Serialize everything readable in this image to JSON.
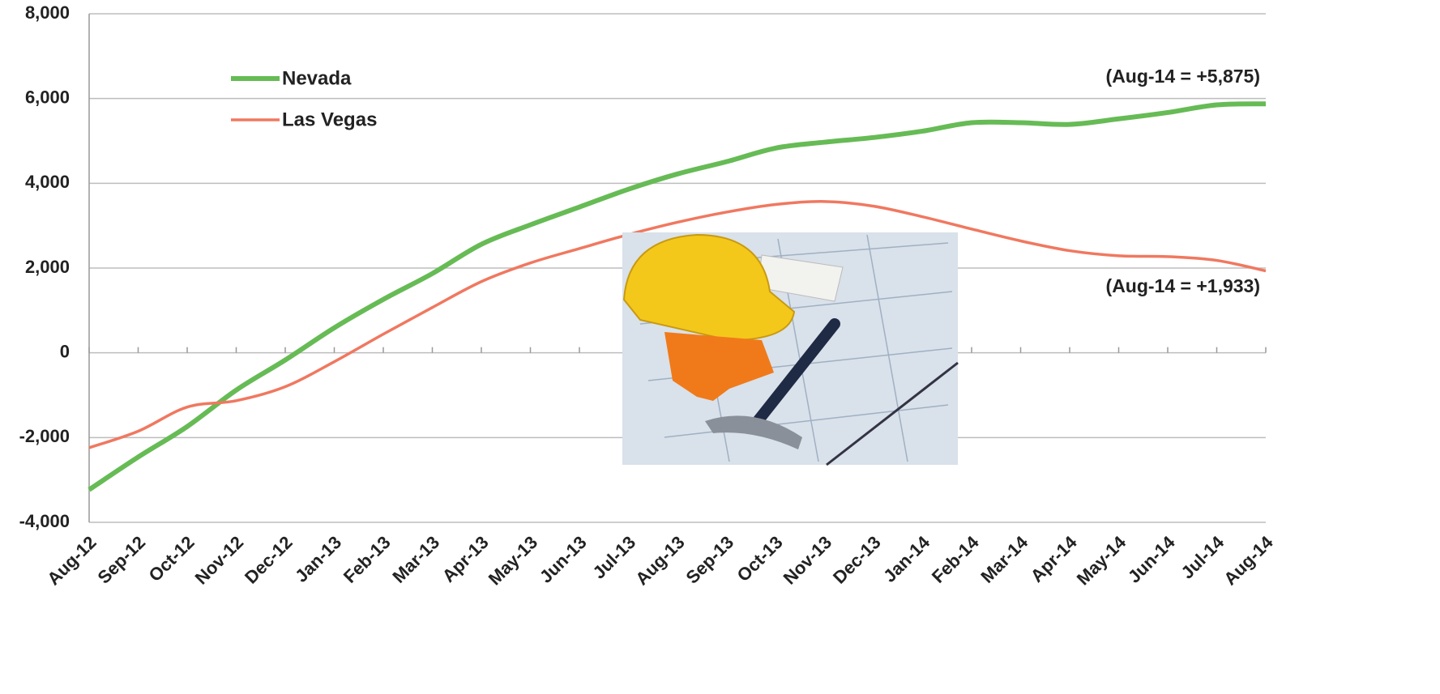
{
  "chart_data": {
    "type": "line",
    "categories": [
      "Aug-12",
      "Sep-12",
      "Oct-12",
      "Nov-12",
      "Dec-12",
      "Jan-13",
      "Feb-13",
      "Mar-13",
      "Apr-13",
      "May-13",
      "Jun-13",
      "Jul-13",
      "Aug-13",
      "Sep-13",
      "Oct-13",
      "Nov-13",
      "Dec-13",
      "Jan-14",
      "Feb-14",
      "Mar-14",
      "Apr-14",
      "May-14",
      "Jun-14",
      "Jul-14",
      "Aug-14"
    ],
    "series": [
      {
        "name": "Nevada",
        "color": "#66bb55",
        "width": 6,
        "values": [
          -3230,
          -2460,
          -1740,
          -880,
          -170,
          590,
          1260,
          1870,
          2560,
          3020,
          3440,
          3860,
          4220,
          4510,
          4830,
          4970,
          5080,
          5230,
          5430,
          5430,
          5390,
          5520,
          5670,
          5850,
          5875
        ]
      },
      {
        "name": "Las Vegas",
        "color": "#f07860",
        "width": 3.5,
        "values": [
          -2240,
          -1850,
          -1280,
          -1130,
          -800,
          -210,
          440,
          1070,
          1680,
          2120,
          2460,
          2790,
          3080,
          3320,
          3500,
          3570,
          3460,
          3210,
          2920,
          2640,
          2410,
          2290,
          2270,
          2180,
          1933
        ]
      }
    ],
    "ylim": [
      -4000,
      8000
    ],
    "yticks": [
      {
        "value": -4000,
        "label": "-4,000"
      },
      {
        "value": -2000,
        "label": "-2,000"
      },
      0,
      {
        "value": 2000,
        "label": "2,000"
      },
      {
        "value": 4000,
        "label": "4,000"
      },
      {
        "value": 6000,
        "label": "6,000"
      },
      {
        "value": 8000,
        "label": "8,000"
      }
    ],
    "grid": true,
    "annotations": [
      "(Aug-14 = +5,875)",
      "(Aug-14 = +1,933)"
    ]
  }
}
